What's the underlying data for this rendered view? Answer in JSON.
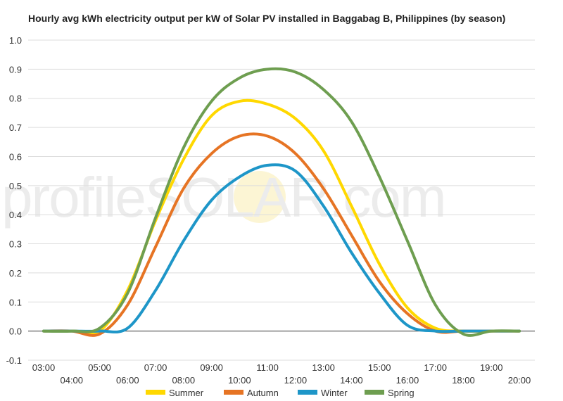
{
  "chart_data": {
    "type": "line",
    "title": "Hourly avg kWh electricity output per kW of Solar PV installed in Baggabag B, Philippines (by season)",
    "xlabel": "",
    "ylabel": "",
    "ylim": [
      -0.1,
      1.0
    ],
    "yticks": [
      "1.0",
      "0.9",
      "0.8",
      "0.7",
      "0.6",
      "0.5",
      "0.4",
      "0.3",
      "0.2",
      "0.1",
      "0.0",
      "-0.1"
    ],
    "x": [
      "03:00",
      "04:00",
      "05:00",
      "06:00",
      "07:00",
      "08:00",
      "09:00",
      "10:00",
      "11:00",
      "12:00",
      "13:00",
      "14:00",
      "15:00",
      "16:00",
      "17:00",
      "18:00",
      "19:00",
      "20:00"
    ],
    "grid": true,
    "legend": "bottom",
    "watermark": "profileSOLAR.com",
    "series": [
      {
        "name": "Summer",
        "color": "#FFD800",
        "values": [
          0.0,
          0.0,
          0.0,
          0.14,
          0.38,
          0.59,
          0.74,
          0.79,
          0.78,
          0.73,
          0.62,
          0.43,
          0.23,
          0.08,
          0.01,
          0.0,
          0.0,
          0.0
        ]
      },
      {
        "name": "Autumn",
        "color": "#E67424",
        "values": [
          0.0,
          0.0,
          -0.01,
          0.09,
          0.29,
          0.49,
          0.61,
          0.67,
          0.67,
          0.61,
          0.49,
          0.33,
          0.17,
          0.06,
          0.0,
          0.0,
          0.0,
          0.0
        ]
      },
      {
        "name": "Winter",
        "color": "#1E96C8",
        "values": [
          0.0,
          0.0,
          0.0,
          0.01,
          0.14,
          0.31,
          0.45,
          0.53,
          0.57,
          0.55,
          0.43,
          0.27,
          0.13,
          0.02,
          0.0,
          0.0,
          0.0,
          0.0
        ]
      },
      {
        "name": "Spring",
        "color": "#6E9E50",
        "values": [
          0.0,
          0.0,
          0.01,
          0.13,
          0.39,
          0.63,
          0.79,
          0.87,
          0.9,
          0.89,
          0.83,
          0.72,
          0.53,
          0.31,
          0.09,
          -0.01,
          0.0,
          0.0
        ]
      }
    ]
  }
}
